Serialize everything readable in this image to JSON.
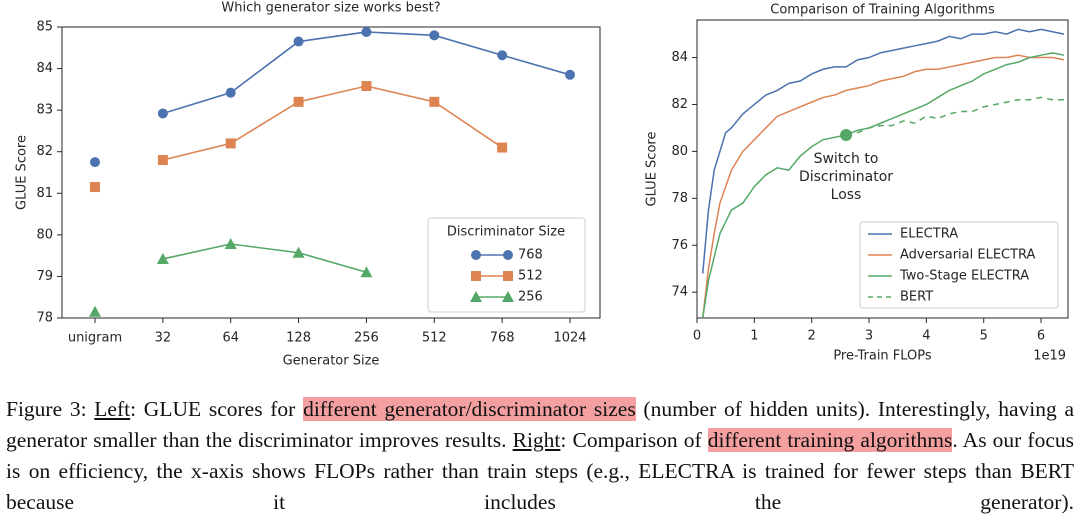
{
  "chart_data": [
    {
      "type": "line",
      "title": "Which generator size works best?",
      "xlabel": "Generator Size",
      "ylabel": "GLUE Score",
      "categories": [
        "unigram",
        "32",
        "64",
        "128",
        "256",
        "512",
        "768",
        "1024"
      ],
      "ylim": [
        78,
        85
      ],
      "yticks": [
        78,
        79,
        80,
        81,
        82,
        83,
        84,
        85
      ],
      "legend_title": "Discriminator Size",
      "legend": "lower right",
      "series": [
        {
          "name": "768",
          "color": "#4c72b0",
          "marker": "circle",
          "values": [
            81.75,
            82.92,
            83.42,
            84.65,
            84.88,
            84.8,
            84.32,
            83.85
          ]
        },
        {
          "name": "512",
          "color": "#dd8452",
          "marker": "square",
          "values": [
            81.15,
            81.8,
            82.2,
            83.2,
            83.58,
            83.2,
            82.1,
            null
          ]
        },
        {
          "name": "256",
          "color": "#55a868",
          "marker": "triangle",
          "values": [
            78.15,
            79.42,
            79.78,
            79.57,
            79.1,
            null,
            null,
            null
          ]
        }
      ]
    },
    {
      "type": "line",
      "title": "Comparison of Training Algorithms",
      "xlabel": "Pre-Train FLOPs",
      "xoffset": "1e19",
      "ylabel": "GLUE Score",
      "xlim": [
        0,
        6.47
      ],
      "xticks": [
        0,
        1,
        2,
        3,
        4,
        5,
        6
      ],
      "ylim": [
        72.9,
        85.6
      ],
      "yticks": [
        74,
        76,
        78,
        80,
        82,
        84
      ],
      "legend": "lower right",
      "annotation": [
        "Switch to",
        "Discriminator",
        "Loss"
      ],
      "switch_point": {
        "x": 2.6,
        "y": 80.7
      },
      "x": [
        0.1,
        0.2,
        0.3,
        0.4,
        0.5,
        0.6,
        0.8,
        1.0,
        1.2,
        1.4,
        1.6,
        1.8,
        2.0,
        2.2,
        2.4,
        2.6,
        2.8,
        3.0,
        3.2,
        3.4,
        3.6,
        3.8,
        4.0,
        4.2,
        4.4,
        4.6,
        4.8,
        5.0,
        5.2,
        5.4,
        5.6,
        5.8,
        6.0,
        6.2,
        6.4
      ],
      "series": [
        {
          "name": "ELECTRA",
          "color": "#4c72b0",
          "dash": false,
          "values": [
            74.8,
            77.5,
            79.2,
            80,
            80.8,
            81.0,
            81.6,
            82.0,
            82.4,
            82.6,
            82.9,
            83.0,
            83.3,
            83.5,
            83.6,
            83.6,
            83.9,
            84.0,
            84.2,
            84.3,
            84.4,
            84.5,
            84.6,
            84.7,
            84.9,
            84.8,
            85.0,
            85.0,
            85.1,
            85.0,
            85.2,
            85.1,
            85.2,
            85.1,
            85.0
          ]
        },
        {
          "name": "Adversarial ELECTRA",
          "color": "#dd8452",
          "dash": false,
          "values": [
            72.9,
            75,
            76.5,
            77.8,
            78.5,
            79.2,
            80.0,
            80.5,
            81.0,
            81.5,
            81.7,
            81.9,
            82.1,
            82.3,
            82.4,
            82.6,
            82.7,
            82.8,
            83.0,
            83.1,
            83.2,
            83.4,
            83.5,
            83.5,
            83.6,
            83.7,
            83.8,
            83.9,
            84.0,
            84.0,
            84.1,
            84.0,
            84.0,
            84.0,
            83.9
          ]
        },
        {
          "name": "Two-Stage ELECTRA",
          "color": "#55a868",
          "dash": false,
          "values": [
            72.9,
            74.5,
            75.5,
            76.5,
            77.0,
            77.5,
            77.8,
            78.5,
            79.0,
            79.3,
            79.2,
            79.8,
            80.2,
            80.5,
            80.6,
            80.7,
            80.9,
            81.0,
            81.2,
            81.4,
            81.6,
            81.8,
            82.0,
            82.3,
            82.6,
            82.8,
            83.0,
            83.3,
            83.5,
            83.7,
            83.8,
            84.0,
            84.1,
            84.2,
            84.1
          ]
        },
        {
          "name": "BERT",
          "color": "#55a868",
          "dash": true,
          "values": [
            null,
            null,
            null,
            null,
            null,
            null,
            null,
            null,
            null,
            null,
            null,
            null,
            null,
            null,
            null,
            80.7,
            80.8,
            81.0,
            81.1,
            81.1,
            81.3,
            81.2,
            81.5,
            81.4,
            81.6,
            81.7,
            81.7,
            81.9,
            82.0,
            82.1,
            82.2,
            82.2,
            82.3,
            82.2,
            82.2
          ]
        }
      ]
    }
  ],
  "caption": {
    "runs": [
      {
        "text": "Figure 3: "
      },
      {
        "text": "Left",
        "underline": true
      },
      {
        "text": ": GLUE scores for "
      },
      {
        "text": "different generator/discriminator sizes",
        "highlight": true
      },
      {
        "text": " (number of hidden units). Interestingly, having a generator smaller than the discriminator improves results. "
      },
      {
        "text": "Right",
        "underline": true
      },
      {
        "text": ": Comparison of "
      },
      {
        "text": "different training algorithms",
        "highlight": true
      },
      {
        "text": ". As our focus is on efficiency, the x-axis shows FLOPs rather than train steps (e.g., ELECTRA is trained for fewer steps than BERT because it includes the generator)."
      }
    ]
  }
}
